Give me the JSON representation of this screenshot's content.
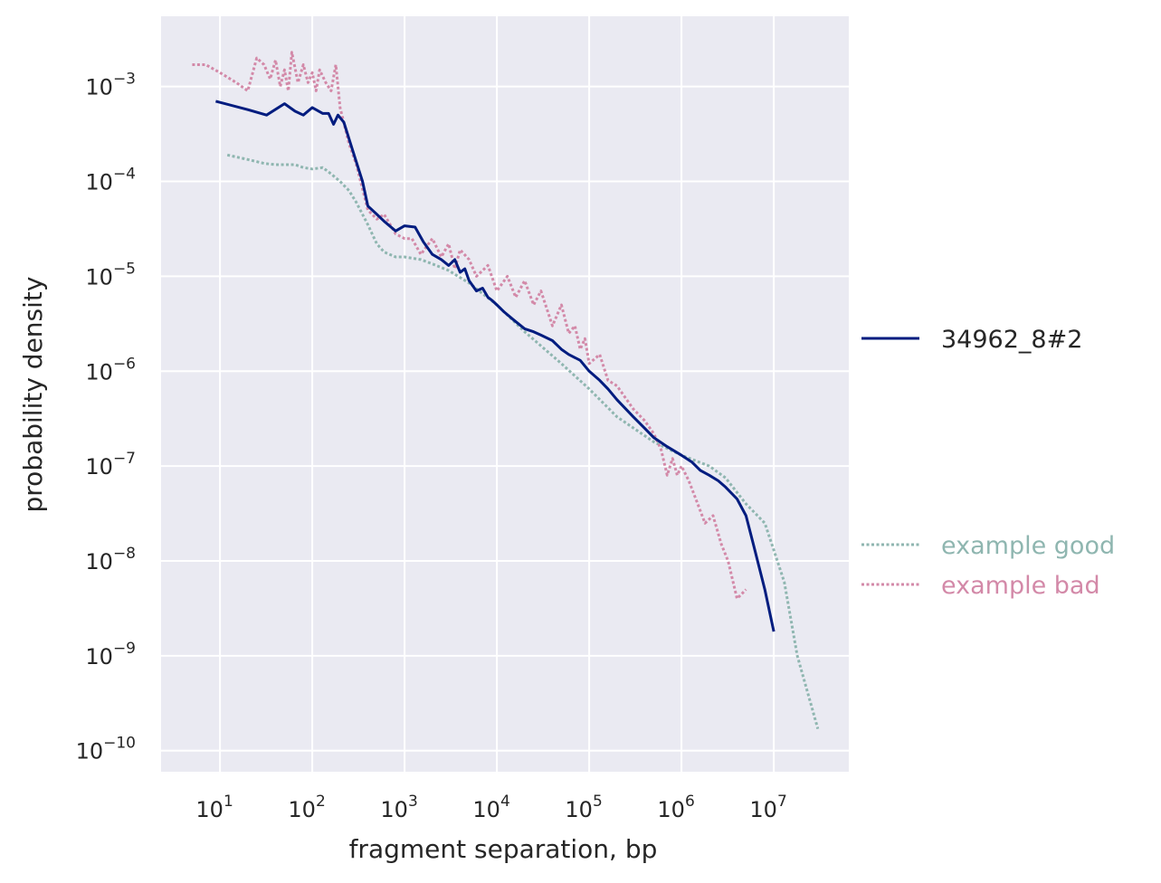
{
  "chart_data": {
    "type": "line",
    "title": "",
    "xlabel": "fragment separation, bp",
    "ylabel": "probability density",
    "xscale": "log",
    "yscale": "log",
    "xlim": [
      2.3,
      65000000
    ],
    "ylim": [
      6e-11,
      0.0055
    ],
    "grid": true,
    "legend_placement": "outside-right",
    "x_ticks": [
      {
        "value": 10,
        "base": "10",
        "exp": "1"
      },
      {
        "value": 100,
        "base": "10",
        "exp": "2"
      },
      {
        "value": 1000,
        "base": "10",
        "exp": "3"
      },
      {
        "value": 10000,
        "base": "10",
        "exp": "4"
      },
      {
        "value": 100000,
        "base": "10",
        "exp": "5"
      },
      {
        "value": 1000000,
        "base": "10",
        "exp": "6"
      },
      {
        "value": 10000000,
        "base": "10",
        "exp": "7"
      }
    ],
    "y_ticks": [
      {
        "value": 0.001,
        "base": "10",
        "exp": "−3"
      },
      {
        "value": 0.0001,
        "base": "10",
        "exp": "−4"
      },
      {
        "value": 1e-05,
        "base": "10",
        "exp": "−5"
      },
      {
        "value": 1e-06,
        "base": "10",
        "exp": "−6"
      },
      {
        "value": 1e-07,
        "base": "10",
        "exp": "−7"
      },
      {
        "value": 1e-08,
        "base": "10",
        "exp": "−8"
      },
      {
        "value": 1e-09,
        "base": "10",
        "exp": "−9"
      },
      {
        "value": 1e-10,
        "base": "10",
        "exp": "−10"
      }
    ],
    "series": [
      {
        "name": "34962_8#2",
        "color": "#001c7f",
        "style": "solid",
        "legend_group": "top",
        "x": [
          9,
          20,
          32,
          50,
          65,
          80,
          100,
          130,
          150,
          170,
          190,
          220,
          260,
          300,
          350,
          400,
          500,
          600,
          800,
          1000,
          1300,
          1600,
          2000,
          2500,
          3000,
          3500,
          4000,
          4500,
          5000,
          6000,
          7000,
          8000,
          9000,
          10000,
          12000,
          15000,
          20000,
          25000,
          30000,
          40000,
          50000,
          60000,
          80000,
          100000,
          130000,
          160000,
          200000,
          300000,
          400000,
          500000,
          700000,
          1000000,
          1300000,
          1600000,
          2000000,
          2500000,
          3000000,
          4000000,
          5000000,
          6000000,
          8000000,
          10000000
        ],
        "y": [
          0.0007,
          0.00057,
          0.0005,
          0.00066,
          0.00055,
          0.0005,
          0.0006,
          0.00052,
          0.00052,
          0.0004,
          0.0005,
          0.00042,
          0.00025,
          0.00016,
          0.0001,
          5.5e-05,
          4.5e-05,
          3.8e-05,
          3e-05,
          3.4e-05,
          3.3e-05,
          2.3e-05,
          1.7e-05,
          1.5e-05,
          1.3e-05,
          1.5e-05,
          1.1e-05,
          1.2e-05,
          9e-06,
          7e-06,
          7.5e-06,
          6e-06,
          5.5e-06,
          5e-06,
          4.2e-06,
          3.5e-06,
          2.8e-06,
          2.6e-06,
          2.4e-06,
          2.1e-06,
          1.7e-06,
          1.5e-06,
          1.3e-06,
          1e-06,
          8e-07,
          6.5e-07,
          5e-07,
          3.3e-07,
          2.5e-07,
          2e-07,
          1.6e-07,
          1.3e-07,
          1.1e-07,
          9e-08,
          8e-08,
          7e-08,
          6e-08,
          4.5e-08,
          3e-08,
          1.5e-08,
          5e-09,
          1.8e-09
        ]
      },
      {
        "name": "example good",
        "color": "#8fb6b0",
        "style": "dotted",
        "legend_group": "bottom",
        "x": [
          12,
          20,
          30,
          40,
          50,
          65,
          80,
          100,
          130,
          160,
          200,
          250,
          300,
          400,
          500,
          600,
          800,
          1000,
          1500,
          2000,
          3000,
          5000,
          10000,
          20000,
          50000,
          100000,
          200000,
          500000,
          1000000,
          2000000,
          3000000,
          5000000,
          8000000,
          10000000,
          13000000,
          18000000,
          30000000
        ],
        "y": [
          0.00019,
          0.00017,
          0.000155,
          0.00015,
          0.00015,
          0.00015,
          0.00014,
          0.000135,
          0.00014,
          0.00012,
          0.0001,
          8e-05,
          6e-05,
          3.5e-05,
          2.2e-05,
          1.8e-05,
          1.6e-05,
          1.6e-05,
          1.5e-05,
          1.35e-05,
          1.15e-05,
          8.5e-06,
          5e-06,
          2.6e-06,
          1.2e-06,
          6.5e-07,
          3.3e-07,
          1.8e-07,
          1.3e-07,
          1e-07,
          7.5e-08,
          4e-08,
          2.5e-08,
          1.3e-08,
          6e-09,
          1e-09,
          1.7e-10
        ]
      },
      {
        "name": "example bad",
        "color": "#d389a8",
        "style": "dotted",
        "legend_group": "bottom",
        "x": [
          5,
          7,
          10,
          15,
          20,
          25,
          30,
          35,
          40,
          45,
          50,
          55,
          60,
          70,
          80,
          90,
          100,
          110,
          120,
          140,
          160,
          180,
          200,
          250,
          300,
          400,
          500,
          600,
          800,
          1000,
          1200,
          1500,
          2000,
          2500,
          3000,
          3500,
          4000,
          5000,
          6000,
          8000,
          10000,
          13000,
          16000,
          20000,
          25000,
          30000,
          40000,
          50000,
          60000,
          70000,
          80000,
          90000,
          100000,
          130000,
          160000,
          200000,
          300000,
          400000,
          500000,
          600000,
          700000,
          800000,
          900000,
          1000000,
          1200000,
          1500000,
          1800000,
          2200000,
          2700000,
          3200000,
          4000000,
          5000000
        ],
        "y": [
          0.0017,
          0.0017,
          0.0014,
          0.0011,
          0.0009,
          0.002,
          0.0017,
          0.0012,
          0.0019,
          0.001,
          0.0015,
          0.0009,
          0.0023,
          0.0011,
          0.0017,
          0.0011,
          0.0014,
          0.0009,
          0.0015,
          0.0011,
          0.0009,
          0.0017,
          0.0006,
          0.00025,
          0.00015,
          5e-05,
          4e-05,
          4.5e-05,
          2.8e-05,
          2.5e-05,
          2.5e-05,
          1.7e-05,
          2.5e-05,
          1.6e-05,
          2.2e-05,
          1.2e-05,
          1.9e-05,
          1.5e-05,
          1e-05,
          1.3e-05,
          7e-06,
          1e-05,
          6e-06,
          9e-06,
          5e-06,
          7e-06,
          3e-06,
          5e-06,
          2.5e-06,
          3e-06,
          1.7e-06,
          2.2e-06,
          1.2e-06,
          1.5e-06,
          8e-07,
          7e-07,
          4e-07,
          3e-07,
          2.2e-07,
          1.5e-07,
          8e-08,
          1.2e-07,
          8e-08,
          1e-07,
          7e-08,
          4e-08,
          2.5e-08,
          3e-08,
          1.5e-08,
          1e-08,
          4e-09,
          5e-09
        ]
      }
    ]
  }
}
